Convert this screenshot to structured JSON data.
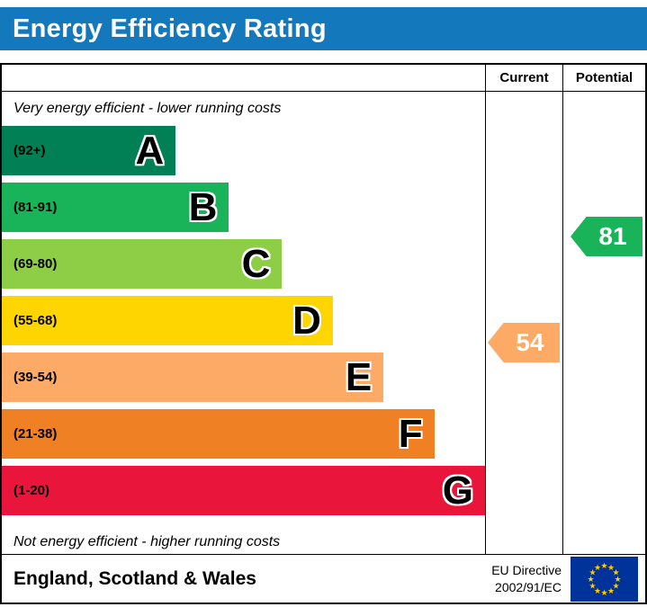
{
  "title": "Energy Efficiency Rating",
  "header": {
    "current": "Current",
    "potential": "Potential"
  },
  "captions": {
    "top": "Very energy efficient - lower running costs",
    "bottom": "Not energy efficient - higher running costs"
  },
  "bands": [
    {
      "letter": "A",
      "range": "(92+)",
      "color": "#008054",
      "width_pct": 36
    },
    {
      "letter": "B",
      "range": "(81-91)",
      "color": "#19b459",
      "width_pct": 47
    },
    {
      "letter": "C",
      "range": "(69-80)",
      "color": "#8dce46",
      "width_pct": 58
    },
    {
      "letter": "D",
      "range": "(55-68)",
      "color": "#ffd500",
      "width_pct": 68.5
    },
    {
      "letter": "E",
      "range": "(39-54)",
      "color": "#fcaa65",
      "width_pct": 79
    },
    {
      "letter": "F",
      "range": "(21-38)",
      "color": "#ef8023",
      "width_pct": 89.5
    },
    {
      "letter": "G",
      "range": "(1-20)",
      "color": "#e9153b",
      "width_pct": 100
    }
  ],
  "ratings": {
    "current": {
      "value": "54",
      "color": "#fcaa65"
    },
    "potential": {
      "value": "81",
      "color": "#19b459"
    }
  },
  "footer": {
    "region": "England, Scotland & Wales",
    "directive_line1": "EU Directive",
    "directive_line2": "2002/91/EC"
  },
  "colors": {
    "banner_bg": "#1479bc",
    "banner_text": "#ffffff",
    "flag_bg": "#003399",
    "flag_star": "#ffcc00"
  },
  "chart_data": {
    "type": "bar",
    "title": "Energy Efficiency Rating",
    "categories": [
      "A",
      "B",
      "C",
      "D",
      "E",
      "F",
      "G"
    ],
    "ranges": [
      "92+",
      "81-91",
      "69-80",
      "55-68",
      "39-54",
      "21-38",
      "1-20"
    ],
    "band_colors": [
      "#008054",
      "#19b459",
      "#8dce46",
      "#ffd500",
      "#fcaa65",
      "#ef8023",
      "#e9153b"
    ],
    "bar_lengths_pct": [
      36,
      47,
      58,
      68.5,
      79,
      89.5,
      100
    ],
    "current": 54,
    "potential": 81,
    "current_band": "E",
    "potential_band": "B",
    "columns": [
      "Current",
      "Potential"
    ],
    "top_caption": "Very energy efficient - lower running costs",
    "bottom_caption": "Not energy efficient - higher running costs",
    "footer_region": "England, Scotland & Wales",
    "footer_directive": "EU Directive 2002/91/EC"
  }
}
